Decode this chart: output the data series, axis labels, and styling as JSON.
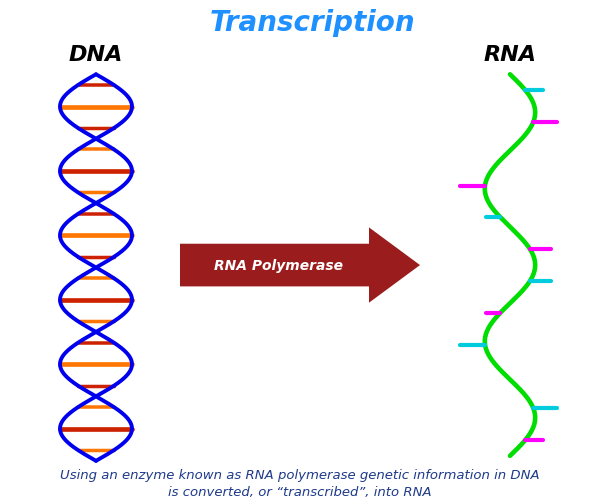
{
  "title": "Transcription",
  "title_color": "#1E90FF",
  "title_fontsize": 20,
  "dna_label": "DNA",
  "rna_label": "RNA",
  "label_fontsize": 16,
  "label_fontweight": "bold",
  "arrow_label": "RNA Polymerase",
  "arrow_color": "#9B1C1C",
  "arrow_label_color": "#FFFFFF",
  "caption": "Using an enzyme known as RNA polymerase genetic information in DNA\nis converted, or “transcribed”, into RNA",
  "caption_color": "#1E3A8A",
  "caption_fontsize": 9.5,
  "background_color": "#FFFFFF",
  "dna_strand1_color": "#0000EE",
  "dna_strand2_color": "#0000EE",
  "dna_rung_color1": "#FF7700",
  "dna_rung_color2": "#CC2200",
  "rna_strand_color": "#00DD00",
  "rna_rung_colors": [
    "#FF00FF",
    "#00CCDD",
    "#FF00FF",
    "#00CCDD"
  ]
}
